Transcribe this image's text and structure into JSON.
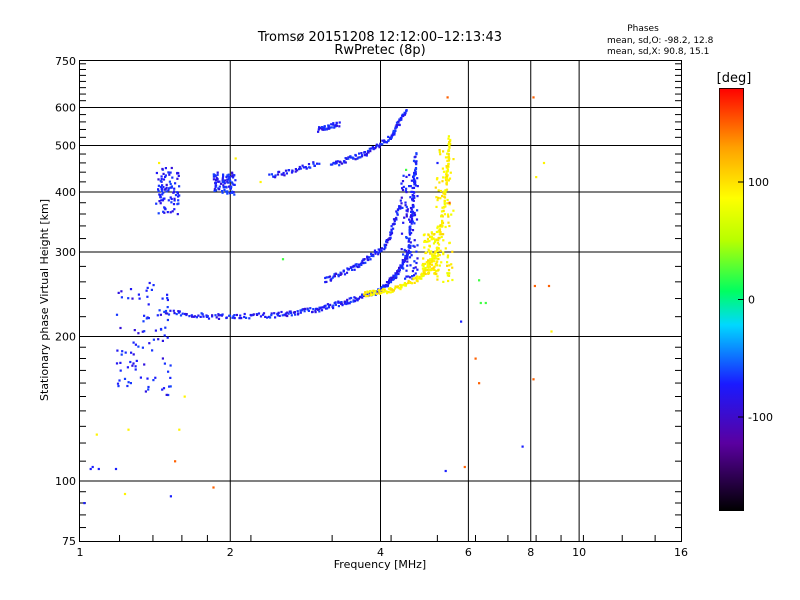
{
  "chart_data": {
    "type": "scatter",
    "title": "Tromsø 20151208 12:12:00–12:13:43",
    "subtitle": "RwPretec (8p)",
    "xlabel": "Frequency [MHz]",
    "ylabel": "Stationary phase Virtual Height [km]",
    "x_scale": "log",
    "y_scale": "log",
    "xlim": [
      1,
      16
    ],
    "ylim": [
      75,
      750
    ],
    "x_ticks": [
      1,
      2,
      4,
      6,
      8,
      10,
      16
    ],
    "y_ticks": [
      75,
      100,
      200,
      300,
      400,
      500,
      600,
      750
    ],
    "grid": true,
    "stats": {
      "heading": "Phases",
      "line_o": "mean, sd,O:  -98.2, 12.8",
      "line_x": "mean, sd,X:  90.8, 15.1"
    },
    "colorbar": {
      "label": "[deg]",
      "ticks": [
        "100",
        "0",
        "-100"
      ],
      "tick_values": [
        100,
        0,
        -100
      ],
      "range": [
        -180,
        180
      ]
    },
    "colors": {
      "o_mode": "#1a1aff",
      "x_mode": "#f2f200",
      "outlier_orange": "#ff9900"
    },
    "series": [
      {
        "mode": "O",
        "phase": -98,
        "traces": [
          {
            "x0": 1.45,
            "x1": 1.9,
            "y0": 225,
            "y1": 220
          },
          {
            "x0": 1.9,
            "x1": 2.5,
            "y0": 220,
            "y1": 222
          },
          {
            "x0": 2.5,
            "x1": 3.0,
            "y0": 222,
            "y1": 228
          },
          {
            "x0": 3.0,
            "x1": 3.5,
            "y0": 228,
            "y1": 238
          },
          {
            "x0": 3.5,
            "x1": 4.0,
            "y0": 238,
            "y1": 250
          },
          {
            "x0": 4.0,
            "x1": 4.3,
            "y0": 250,
            "y1": 268
          },
          {
            "x0": 4.3,
            "x1": 4.55,
            "y0": 268,
            "y1": 300
          },
          {
            "x0": 4.55,
            "x1": 4.65,
            "y0": 300,
            "y1": 380
          },
          {
            "x0": 4.65,
            "x1": 4.7,
            "y0": 380,
            "y1": 480
          },
          {
            "x0": 3.1,
            "x1": 3.6,
            "y0": 262,
            "y1": 280
          },
          {
            "x0": 3.6,
            "x1": 4.1,
            "y0": 280,
            "y1": 310
          },
          {
            "x0": 4.1,
            "x1": 4.4,
            "y0": 310,
            "y1": 380
          },
          {
            "x0": 3.2,
            "x1": 3.7,
            "y0": 455,
            "y1": 480
          },
          {
            "x0": 3.7,
            "x1": 4.2,
            "y0": 480,
            "y1": 520
          },
          {
            "x0": 4.2,
            "x1": 4.5,
            "y0": 520,
            "y1": 590
          },
          {
            "x0": 2.4,
            "x1": 3.0,
            "y0": 430,
            "y1": 460
          },
          {
            "x0": 3.0,
            "x1": 3.3,
            "y0": 540,
            "y1": 555
          }
        ],
        "clusters": [
          {
            "x0": 1.18,
            "x1": 1.52,
            "y0": 150,
            "y1": 260
          },
          {
            "x0": 1.42,
            "x1": 1.58,
            "y0": 360,
            "y1": 450
          },
          {
            "x0": 1.85,
            "x1": 2.05,
            "y0": 395,
            "y1": 440
          },
          {
            "x0": 4.4,
            "x1": 4.75,
            "y0": 260,
            "y1": 440
          }
        ],
        "isolated": [
          {
            "x": 1.05,
            "y": 106
          },
          {
            "x": 1.06,
            "y": 107
          },
          {
            "x": 1.09,
            "y": 106
          },
          {
            "x": 1.18,
            "y": 106
          },
          {
            "x": 1.02,
            "y": 90
          },
          {
            "x": 1.52,
            "y": 93
          },
          {
            "x": 5.2,
            "y": 460
          },
          {
            "x": 5.4,
            "y": 105
          },
          {
            "x": 5.8,
            "y": 215
          },
          {
            "x": 7.7,
            "y": 118
          }
        ]
      },
      {
        "mode": "X",
        "phase": 90,
        "traces": [
          {
            "x0": 3.7,
            "x1": 4.2,
            "y0": 245,
            "y1": 250
          },
          {
            "x0": 4.2,
            "x1": 4.8,
            "y0": 250,
            "y1": 265
          },
          {
            "x0": 4.8,
            "x1": 5.2,
            "y0": 265,
            "y1": 300
          },
          {
            "x0": 5.2,
            "x1": 5.42,
            "y0": 300,
            "y1": 420
          },
          {
            "x0": 5.42,
            "x1": 5.5,
            "y0": 420,
            "y1": 520
          }
        ],
        "clusters": [
          {
            "x0": 5.15,
            "x1": 5.6,
            "y0": 260,
            "y1": 490
          },
          {
            "x0": 4.85,
            "x1": 5.2,
            "y0": 270,
            "y1": 330
          }
        ],
        "isolated": [
          {
            "x": 1.08,
            "y": 125
          },
          {
            "x": 1.23,
            "y": 94
          },
          {
            "x": 1.25,
            "y": 128
          },
          {
            "x": 1.44,
            "y": 460
          },
          {
            "x": 1.58,
            "y": 128
          },
          {
            "x": 1.62,
            "y": 150
          },
          {
            "x": 2.05,
            "y": 470
          },
          {
            "x": 2.3,
            "y": 420
          },
          {
            "x": 8.5,
            "y": 460
          },
          {
            "x": 8.2,
            "y": 430
          },
          {
            "x": 8.8,
            "y": 205
          }
        ]
      },
      {
        "mode": "other",
        "phase": 150,
        "isolated": [
          {
            "x": 1.55,
            "y": 110
          },
          {
            "x": 5.9,
            "y": 107
          },
          {
            "x": 6.2,
            "y": 180
          },
          {
            "x": 6.3,
            "y": 160
          },
          {
            "x": 8.1,
            "y": 630
          },
          {
            "x": 8.15,
            "y": 255
          },
          {
            "x": 8.1,
            "y": 163
          },
          {
            "x": 8.7,
            "y": 255
          },
          {
            "x": 1.85,
            "y": 97
          },
          {
            "x": 5.5,
            "y": 380
          },
          {
            "x": 5.45,
            "y": 630
          }
        ]
      },
      {
        "mode": "other",
        "phase": 20,
        "isolated": [
          {
            "x": 6.3,
            "y": 262
          },
          {
            "x": 6.35,
            "y": 235
          },
          {
            "x": 6.5,
            "y": 235
          },
          {
            "x": 2.55,
            "y": 290
          },
          {
            "x": 4.5,
            "y": 445
          }
        ]
      }
    ]
  }
}
